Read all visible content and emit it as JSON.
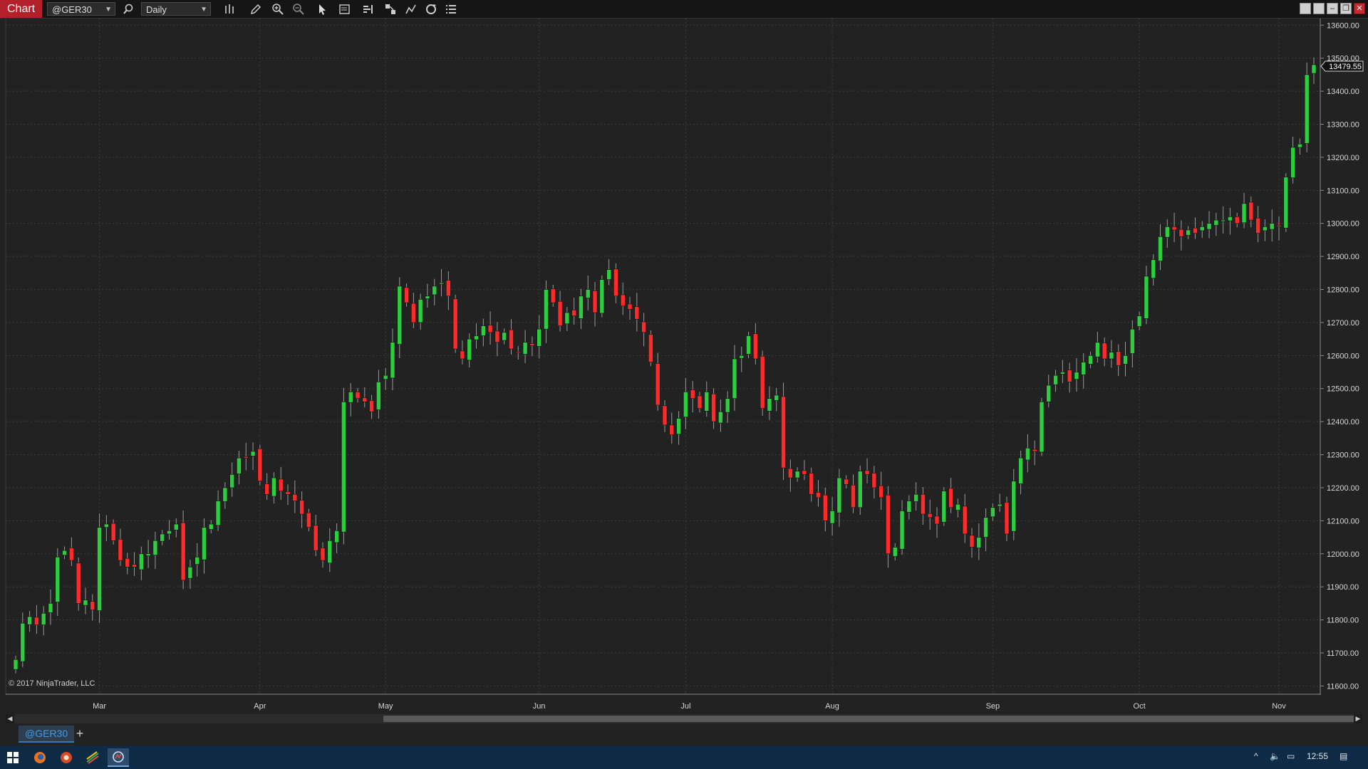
{
  "toolbar": {
    "tab_label": "Chart",
    "instrument": "@GER30",
    "interval": "Daily"
  },
  "chart_data": {
    "type": "candlestick",
    "instrument": "@GER30",
    "interval": "Daily",
    "last_price_label": "13479.55",
    "y_ticks": [
      "13600.00",
      "13500.00",
      "13400.00",
      "13300.00",
      "13200.00",
      "13100.00",
      "13000.00",
      "12900.00",
      "12800.00",
      "12700.00",
      "12600.00",
      "12500.00",
      "12400.00",
      "12300.00",
      "12200.00",
      "12100.00",
      "12000.00",
      "11900.00",
      "11800.00",
      "11700.00",
      "11600.00"
    ],
    "y_range": [
      11575,
      13620
    ],
    "x_ticks": [
      {
        "label": "Mar",
        "bar": 12
      },
      {
        "label": "Apr",
        "bar": 35
      },
      {
        "label": "May",
        "bar": 53
      },
      {
        "label": "Jun",
        "bar": 75
      },
      {
        "label": "Jul",
        "bar": 96
      },
      {
        "label": "Aug",
        "bar": 117
      },
      {
        "label": "Sep",
        "bar": 140
      },
      {
        "label": "Oct",
        "bar": 161
      },
      {
        "label": "Nov",
        "bar": 181
      }
    ],
    "grid": true,
    "close_series": [
      11680,
      11790,
      11810,
      11785,
      11820,
      11850,
      11990,
      12010,
      11980,
      11850,
      11860,
      11830,
      12080,
      12090,
      12040,
      11980,
      11960,
      11960,
      12000,
      12000,
      12040,
      12060,
      12070,
      12090,
      11920,
      11960,
      11990,
      12080,
      12090,
      12160,
      12200,
      12240,
      12290,
      12290,
      12310,
      12220,
      12180,
      12230,
      12190,
      12180,
      12160,
      12120,
      12080,
      12010,
      11980,
      12040,
      12070,
      12460,
      12490,
      12470,
      12460,
      12430,
      12520,
      12540,
      12640,
      12810,
      12760,
      12700,
      12770,
      12780,
      12810,
      12820,
      12780,
      12620,
      12590,
      12650,
      12660,
      12690,
      12670,
      12640,
      12670,
      12620,
      12610,
      12640,
      12630,
      12680,
      12800,
      12760,
      12690,
      12730,
      12720,
      12780,
      12800,
      12730,
      12830,
      12860,
      12780,
      12750,
      12740,
      12710,
      12670,
      12580,
      12450,
      12390,
      12360,
      12410,
      12490,
      12470,
      12440,
      12490,
      12400,
      12430,
      12470,
      12590,
      12600,
      12660,
      12590,
      12440,
      12470,
      12480,
      12260,
      12230,
      12250,
      12240,
      12180,
      12170,
      12100,
      12130,
      12230,
      12210,
      12140,
      12250,
      12240,
      12200,
      12170,
      12000,
      12020,
      12130,
      12160,
      12180,
      12120,
      12110,
      12090,
      12190,
      12140,
      12150,
      12060,
      12020,
      12050,
      12110,
      12140,
      12150,
      12060,
      12220,
      12290,
      12320,
      12310,
      12460,
      12510,
      12540,
      12550,
      12520,
      12550,
      12580,
      12600,
      12640,
      12590,
      12610,
      12570,
      12600,
      12680,
      12720,
      12840,
      12890,
      12960,
      12990,
      12980,
      12960,
      12980,
      12970,
      12990,
      13000,
      13010,
      13010,
      13020,
      13000,
      13060,
      13010,
      12970,
      12990,
      13000,
      12990,
      13140,
      13230,
      13240,
      13450,
      13480
    ]
  },
  "footer": {
    "copyright": "© 2017 NinjaTrader, LLC",
    "instrument_tab": "@GER30"
  },
  "taskbar": {
    "time": "12:55"
  }
}
